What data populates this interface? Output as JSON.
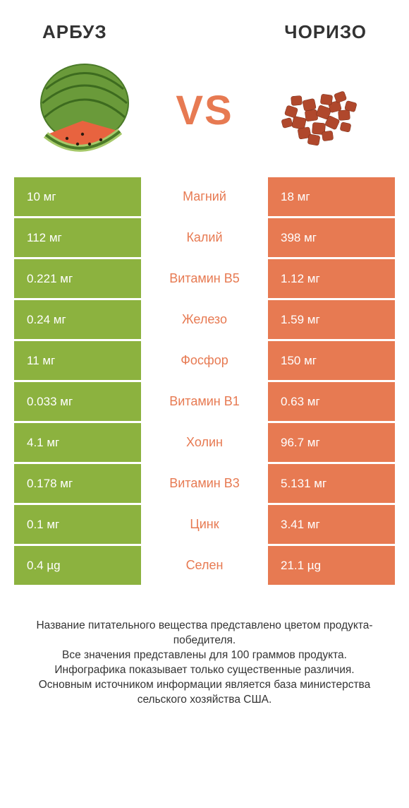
{
  "colors": {
    "green": "#8cb23f",
    "orange": "#e77a52",
    "text": "#333333",
    "white": "#ffffff"
  },
  "left_title": "АРБУЗ",
  "right_title": "ЧОРИЗО",
  "vs_label": "VS",
  "rows": [
    {
      "left": "10 мг",
      "mid": "Магний",
      "right": "18 мг",
      "winner": "right"
    },
    {
      "left": "112 мг",
      "mid": "Калий",
      "right": "398 мг",
      "winner": "right"
    },
    {
      "left": "0.221 мг",
      "mid": "Витамин B5",
      "right": "1.12 мг",
      "winner": "right"
    },
    {
      "left": "0.24 мг",
      "mid": "Железо",
      "right": "1.59 мг",
      "winner": "right"
    },
    {
      "left": "11 мг",
      "mid": "Фосфор",
      "right": "150 мг",
      "winner": "right"
    },
    {
      "left": "0.033 мг",
      "mid": "Витамин B1",
      "right": "0.63 мг",
      "winner": "right"
    },
    {
      "left": "4.1 мг",
      "mid": "Холин",
      "right": "96.7 мг",
      "winner": "right"
    },
    {
      "left": "0.178 мг",
      "mid": "Витамин B3",
      "right": "5.131 мг",
      "winner": "right"
    },
    {
      "left": "0.1 мг",
      "mid": "Цинк",
      "right": "3.41 мг",
      "winner": "right"
    },
    {
      "left": "0.4 µg",
      "mid": "Селен",
      "right": "21.1 µg",
      "winner": "right"
    }
  ],
  "footer_lines": [
    "Название питательного вещества представлено цветом продукта-победителя.",
    "Все значения представлены для 100 граммов продукта.",
    "Инфографика показывает только существенные различия.",
    "Основным источником информации является база министерства сельского хозяйства США."
  ]
}
